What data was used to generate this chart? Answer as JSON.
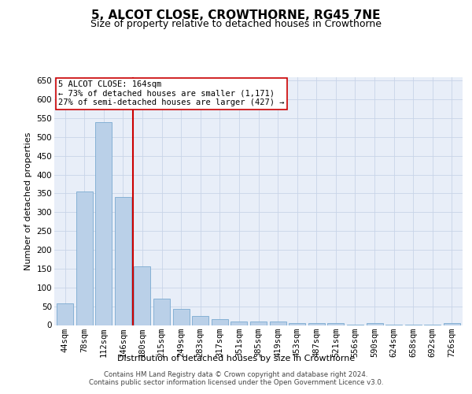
{
  "title": "5, ALCOT CLOSE, CROWTHORNE, RG45 7NE",
  "subtitle": "Size of property relative to detached houses in Crowthorne",
  "xlabel": "Distribution of detached houses by size in Crowthorne",
  "ylabel": "Number of detached properties",
  "categories": [
    "44sqm",
    "78sqm",
    "112sqm",
    "146sqm",
    "180sqm",
    "215sqm",
    "249sqm",
    "283sqm",
    "317sqm",
    "351sqm",
    "385sqm",
    "419sqm",
    "453sqm",
    "487sqm",
    "521sqm",
    "556sqm",
    "590sqm",
    "624sqm",
    "658sqm",
    "692sqm",
    "726sqm"
  ],
  "values": [
    58,
    355,
    540,
    340,
    157,
    70,
    42,
    25,
    16,
    10,
    9,
    10,
    5,
    5,
    5,
    1,
    5,
    1,
    1,
    1,
    5
  ],
  "bar_color": "#bad0e8",
  "bar_edge_color": "#7aaad0",
  "bar_width": 0.85,
  "vline_x": 3.5,
  "vline_color": "#cc0000",
  "annotation_text": "5 ALCOT CLOSE: 164sqm\n← 73% of detached houses are smaller (1,171)\n27% of semi-detached houses are larger (427) →",
  "annotation_box_color": "#ffffff",
  "annotation_box_edge": "#cc0000",
  "ylim": [
    0,
    660
  ],
  "yticks": [
    0,
    50,
    100,
    150,
    200,
    250,
    300,
    350,
    400,
    450,
    500,
    550,
    600,
    650
  ],
  "grid_color": "#c8d4e8",
  "bg_color": "#e8eef8",
  "footer_line1": "Contains HM Land Registry data © Crown copyright and database right 2024.",
  "footer_line2": "Contains public sector information licensed under the Open Government Licence v3.0.",
  "title_fontsize": 11,
  "subtitle_fontsize": 9,
  "axis_label_fontsize": 8,
  "tick_fontsize": 7.5,
  "annotation_fontsize": 7.5
}
